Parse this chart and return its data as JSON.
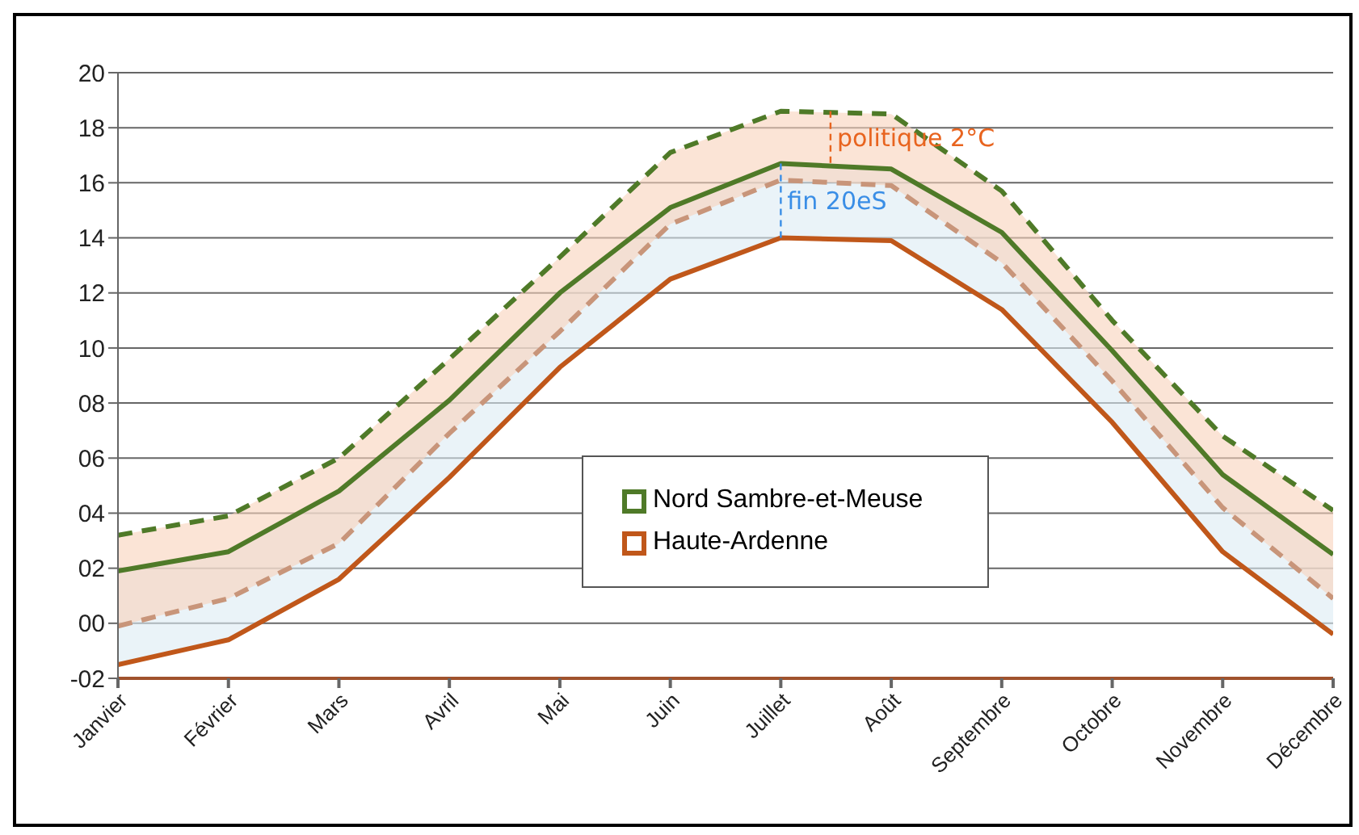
{
  "chart_data": {
    "type": "line",
    "categories": [
      "Janvier",
      "Février",
      "Mars",
      "Avril",
      "Mai",
      "Juin",
      "Juillet",
      "Août",
      "Septembre",
      "Octobre",
      "Novembre",
      "Décembre"
    ],
    "series": [
      {
        "name": "Nord Sambre-et-Meuse",
        "color": "#4f7a28",
        "line_style": "solid",
        "values": [
          1.9,
          2.6,
          4.8,
          8.1,
          12.0,
          15.1,
          16.7,
          16.5,
          14.2,
          9.9,
          5.4,
          2.5
        ],
        "lower": [
          -1.5,
          -0.6,
          1.6,
          5.3,
          9.3,
          12.5,
          14.0,
          13.9,
          11.4,
          7.3,
          2.6,
          -0.4
        ],
        "upper": [
          1.9,
          2.6,
          4.8,
          8.1,
          12.0,
          15.1,
          16.7,
          16.5,
          14.2,
          9.9,
          5.4,
          2.5
        ]
      },
      {
        "color": "#4f7a28",
        "line_style": "dashed",
        "values": [
          3.2,
          3.9,
          6.0,
          9.6,
          13.3,
          17.1,
          18.6,
          18.5,
          15.7,
          11.0,
          6.8,
          4.1
        ],
        "lower": [
          -0.1,
          0.9,
          2.9,
          6.9,
          10.6,
          14.5,
          16.1,
          15.9,
          13.1,
          8.8,
          4.2,
          0.9
        ],
        "upper": [
          3.2,
          3.9,
          6.0,
          9.6,
          13.3,
          17.1,
          18.6,
          18.5,
          15.7,
          11.0,
          6.8,
          4.1
        ]
      },
      {
        "name": "Haute-Ardenne",
        "color": "#c0571a",
        "line_style": "solid",
        "values": [
          -1.5,
          -0.6,
          1.6,
          5.3,
          9.3,
          12.5,
          14.0,
          13.9,
          11.4,
          7.3,
          2.6,
          -0.4
        ]
      },
      {
        "color": "#c8957a",
        "line_style": "dashed",
        "values": [
          -0.1,
          0.9,
          2.9,
          6.9,
          10.6,
          14.5,
          16.1,
          15.9,
          13.1,
          8.8,
          4.2,
          0.9
        ]
      }
    ],
    "ylim": [
      -2,
      20
    ],
    "yticks": [
      {
        "value": -2,
        "label": "-02"
      },
      {
        "value": 0,
        "label": "00"
      },
      {
        "value": 2,
        "label": "02"
      },
      {
        "value": 4,
        "label": "04"
      },
      {
        "value": 6,
        "label": "06"
      },
      {
        "value": 8,
        "label": "08"
      },
      10,
      12,
      14,
      16,
      18,
      20
    ],
    "grid": "y",
    "legend": "center",
    "marker": "none",
    "annotations": [
      {
        "text": "politique 2°C",
        "x": "Juillet",
        "y": 18.6
      },
      {
        "text": "fin 20eS",
        "x": "Juillet",
        "y": 16.7
      }
    ]
  }
}
